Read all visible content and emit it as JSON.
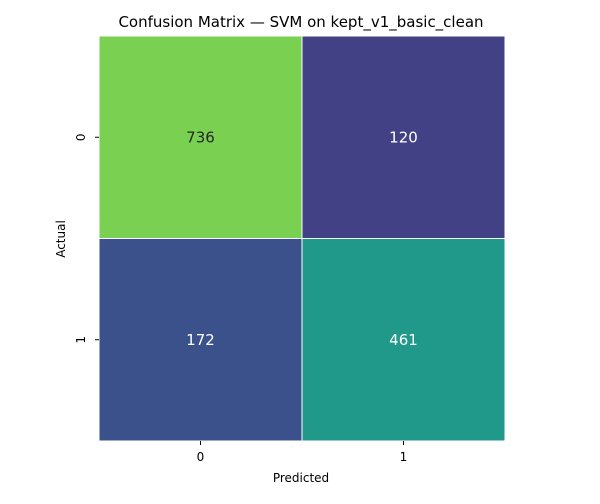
{
  "chart_data": {
    "type": "heatmap",
    "title": "Confusion Matrix — SVM on kept_v1_basic_clean",
    "xlabel": "Predicted",
    "ylabel": "Actual",
    "x_categories": [
      "0",
      "1"
    ],
    "y_categories": [
      "0",
      "1"
    ],
    "values": [
      [
        736,
        120
      ],
      [
        172,
        461
      ]
    ],
    "colormap": "viridis",
    "colorbar": false,
    "annotations": true,
    "cell_colors": [
      [
        "#7ad151",
        "#424186"
      ],
      [
        "#3b518b",
        "#21998a"
      ]
    ],
    "annotation_colors": [
      [
        "#262626",
        "#ffffff"
      ],
      [
        "#ffffff",
        "#ffffff"
      ]
    ]
  }
}
